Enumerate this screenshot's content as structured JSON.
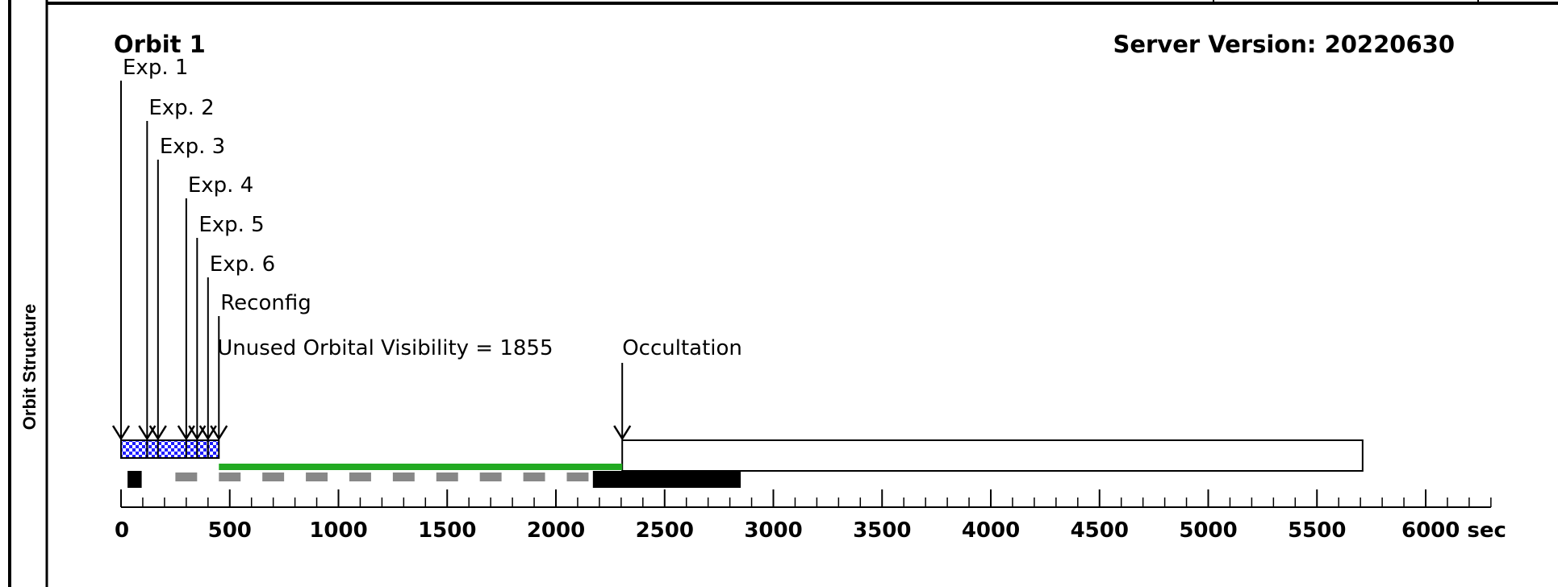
{
  "section_label": "Orbit Structure",
  "orbit_title": "Orbit 1",
  "server_version": "Server Version: 20220630",
  "colors": {
    "exposure_fill": "#1f1fff",
    "unused_visibility": "#22aa22",
    "gray_dash": "#888888",
    "black_bar": "#000000",
    "occultation_fill": "#ffffff"
  },
  "chart_data": {
    "type": "timeline",
    "unit": "sec",
    "xlim": [
      0,
      6300
    ],
    "ticks": [
      0,
      500,
      1000,
      1500,
      2000,
      2500,
      3000,
      3500,
      4000,
      4500,
      5000,
      5500,
      6000
    ],
    "tick_labels": [
      "0",
      "500",
      "1000",
      "1500",
      "2000",
      "2500",
      "3000",
      "3500",
      "4000",
      "4500",
      "5000",
      "5500",
      "6000 sec"
    ],
    "minor_tick_step": 100,
    "events": [
      {
        "label": "Exp. 1",
        "time": 0
      },
      {
        "label": "Exp. 2",
        "time": 120
      },
      {
        "label": "Exp. 3",
        "time": 170
      },
      {
        "label": "Exp. 4",
        "time": 300
      },
      {
        "label": "Exp. 5",
        "time": 350
      },
      {
        "label": "Exp. 6",
        "time": 400
      },
      {
        "label": "Reconfig",
        "time": 450
      }
    ],
    "exposure_blocks": [
      {
        "start": 0,
        "end": 120
      },
      {
        "start": 120,
        "end": 170
      },
      {
        "start": 170,
        "end": 300
      },
      {
        "start": 300,
        "end": 350
      },
      {
        "start": 350,
        "end": 400
      },
      {
        "start": 400,
        "end": 450
      }
    ],
    "unused_visibility": {
      "label": "Unused Orbital Visibility = 1855",
      "start": 450,
      "end": 2305
    },
    "occultation": {
      "label": "Occultation",
      "start": 2305,
      "end": 5710
    },
    "black_bars": [
      {
        "start": 30,
        "end": 95
      },
      {
        "start": 2170,
        "end": 2850
      }
    ],
    "gray_dashes": {
      "start": 250,
      "end": 2170,
      "dash": 100,
      "period": 200
    }
  }
}
